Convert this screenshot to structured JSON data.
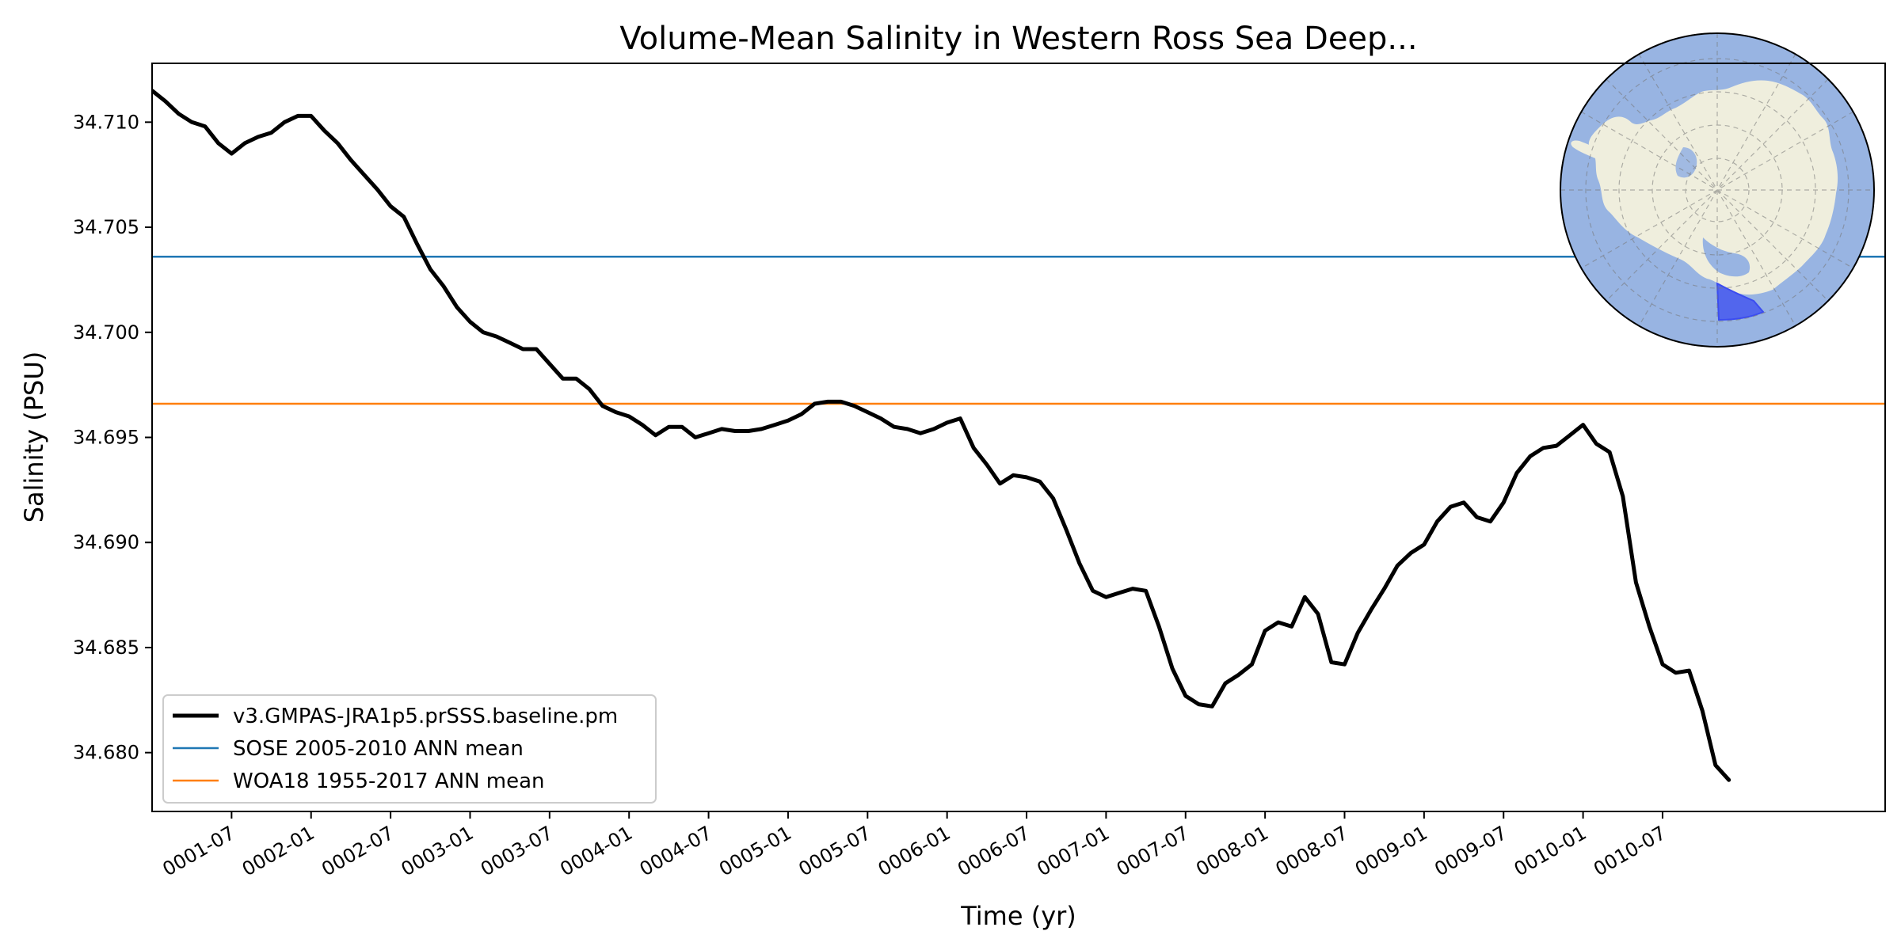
{
  "chart_data": {
    "type": "line",
    "title": "Volume-Mean Salinity in Western Ross Sea Deep...",
    "xlabel": "Time (yr)",
    "ylabel": "Salinity (PSU)",
    "xlim": [
      0.0,
      10.9
    ],
    "ylim": [
      34.6772,
      34.7128
    ],
    "x_ticks": [
      {
        "value": 0.5,
        "label": "0001-07"
      },
      {
        "value": 1.0,
        "label": "0002-01"
      },
      {
        "value": 1.5,
        "label": "0002-07"
      },
      {
        "value": 2.0,
        "label": "0003-01"
      },
      {
        "value": 2.5,
        "label": "0003-07"
      },
      {
        "value": 3.0,
        "label": "0004-01"
      },
      {
        "value": 3.5,
        "label": "0004-07"
      },
      {
        "value": 4.0,
        "label": "0005-01"
      },
      {
        "value": 4.5,
        "label": "0005-07"
      },
      {
        "value": 5.0,
        "label": "0006-01"
      },
      {
        "value": 5.5,
        "label": "0006-07"
      },
      {
        "value": 6.0,
        "label": "0007-01"
      },
      {
        "value": 6.5,
        "label": "0007-07"
      },
      {
        "value": 7.0,
        "label": "0008-01"
      },
      {
        "value": 7.5,
        "label": "0008-07"
      },
      {
        "value": 8.0,
        "label": "0009-01"
      },
      {
        "value": 8.5,
        "label": "0009-07"
      },
      {
        "value": 9.0,
        "label": "0010-01"
      },
      {
        "value": 9.5,
        "label": "0010-07"
      }
    ],
    "y_ticks": [
      {
        "value": 34.68,
        "label": "34.680"
      },
      {
        "value": 34.685,
        "label": "34.685"
      },
      {
        "value": 34.69,
        "label": "34.690"
      },
      {
        "value": 34.695,
        "label": "34.695"
      },
      {
        "value": 34.7,
        "label": "34.700"
      },
      {
        "value": 34.705,
        "label": "34.705"
      },
      {
        "value": 34.71,
        "label": "34.710"
      }
    ],
    "series": [
      {
        "name": "v3.GMPAS-JRA1p5.prSSS.baseline.pm",
        "color": "#000000",
        "style": "thick-line",
        "x": [
          0.0,
          0.083,
          0.167,
          0.25,
          0.333,
          0.417,
          0.5,
          0.583,
          0.667,
          0.75,
          0.833,
          0.917,
          1.0,
          1.083,
          1.167,
          1.25,
          1.333,
          1.417,
          1.5,
          1.583,
          1.667,
          1.75,
          1.833,
          1.917,
          2.0,
          2.083,
          2.167,
          2.25,
          2.333,
          2.417,
          2.5,
          2.583,
          2.667,
          2.75,
          2.833,
          2.917,
          3.0,
          3.083,
          3.167,
          3.25,
          3.333,
          3.417,
          3.5,
          3.583,
          3.667,
          3.75,
          3.833,
          3.917,
          4.0,
          4.083,
          4.167,
          4.25,
          4.333,
          4.417,
          4.5,
          4.583,
          4.667,
          4.75,
          4.833,
          4.917,
          5.0,
          5.083,
          5.167,
          5.25,
          5.333,
          5.417,
          5.5,
          5.583,
          5.667,
          5.75,
          5.833,
          5.917,
          6.0,
          6.083,
          6.167,
          6.25,
          6.333,
          6.417,
          6.5,
          6.583,
          6.667,
          6.75,
          6.833,
          6.917,
          7.0,
          7.083,
          7.167,
          7.25,
          7.333,
          7.417,
          7.5,
          7.583,
          7.667,
          7.75,
          7.833,
          7.917,
          8.0,
          8.083,
          8.167,
          8.25,
          8.333,
          8.417,
          8.5,
          8.583,
          8.667,
          8.75,
          8.833,
          8.917,
          9.0,
          9.083,
          9.167,
          9.25,
          9.333,
          9.417,
          9.5,
          9.583,
          9.667,
          9.75,
          9.833,
          9.917
        ],
        "values": [
          34.7115,
          34.711,
          34.7104,
          34.71,
          34.7098,
          34.709,
          34.7085,
          34.709,
          34.7093,
          34.7095,
          34.71,
          34.7103,
          34.7103,
          34.7096,
          34.709,
          34.7082,
          34.7075,
          34.7068,
          34.706,
          34.7055,
          34.7042,
          34.703,
          34.7022,
          34.7012,
          34.7005,
          34.7,
          34.6998,
          34.6995,
          34.6992,
          34.6992,
          34.6985,
          34.6978,
          34.6978,
          34.6973,
          34.6965,
          34.6962,
          34.696,
          34.6956,
          34.6951,
          34.6955,
          34.6955,
          34.695,
          34.6952,
          34.6954,
          34.6953,
          34.6953,
          34.6954,
          34.6956,
          34.6958,
          34.6961,
          34.6966,
          34.6967,
          34.6967,
          34.6965,
          34.6962,
          34.6959,
          34.6955,
          34.6954,
          34.6952,
          34.6954,
          34.6957,
          34.6959,
          34.6945,
          34.6937,
          34.6928,
          34.6932,
          34.6931,
          34.6929,
          34.6921,
          34.6906,
          34.689,
          34.6877,
          34.6874,
          34.6876,
          34.6878,
          34.6877,
          34.686,
          34.684,
          34.6827,
          34.6823,
          34.6822,
          34.6833,
          34.6837,
          34.6842,
          34.6858,
          34.6862,
          34.686,
          34.6874,
          34.6866,
          34.6843,
          34.6842,
          34.6857,
          34.6868,
          34.6878,
          34.6889,
          34.6895,
          34.6899,
          34.691,
          34.6917,
          34.6919,
          34.6912,
          34.691,
          34.6919,
          34.6933,
          34.6941,
          34.6945,
          34.6946,
          34.6951,
          34.6956,
          34.6947,
          34.6943,
          34.6922,
          34.6881,
          34.686,
          34.6842,
          34.6838,
          34.6839,
          34.682,
          34.6794,
          34.6787
        ]
      },
      {
        "name": "SOSE 2005-2010 ANN mean",
        "color": "#1f77b4",
        "style": "hline",
        "value": 34.7036
      },
      {
        "name": "WOA18 1955-2017 ANN mean",
        "color": "#ff7f0e",
        "style": "hline",
        "value": 34.6966
      }
    ],
    "legend_placement": "lower-left",
    "grid": false,
    "inset": {
      "description": "south polar stereographic map of Antarctica with highlighted region",
      "placement": "top-right",
      "ocean_color": "#98b4e2",
      "land_color": "#efeedd",
      "region_color": "#3b4cf0"
    }
  }
}
